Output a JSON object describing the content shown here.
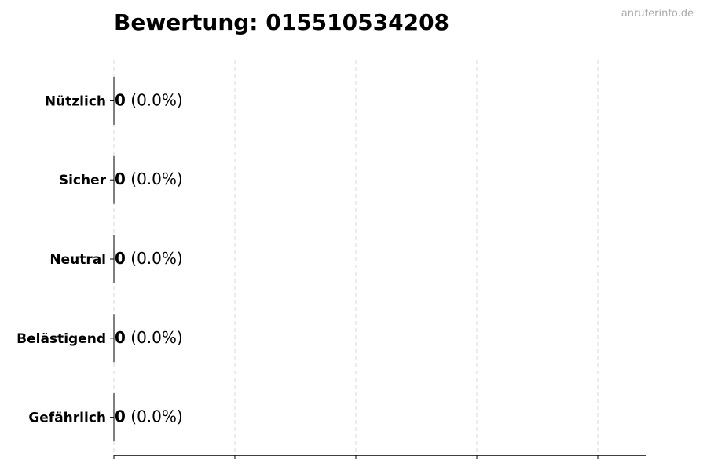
{
  "chart_data": {
    "type": "bar",
    "orientation": "horizontal",
    "title": "Bewertung: 015510534208",
    "categories": [
      "Nützlich",
      "Sicher",
      "Neutral",
      "Belästigend",
      "Gefährlich"
    ],
    "values": [
      0,
      0,
      0,
      0,
      0
    ],
    "data_labels": [
      {
        "count": "0",
        "percent": "(0.0%)"
      },
      {
        "count": "0",
        "percent": "(0.0%)"
      },
      {
        "count": "0",
        "percent": "(0.0%)"
      },
      {
        "count": "0",
        "percent": "(0.0%)"
      },
      {
        "count": "0",
        "percent": "(0.0%)"
      }
    ],
    "xlabel": "",
    "ylabel": "",
    "x_tick_count": 5,
    "x_tick_labels_shown": false,
    "grid": "vertical dashed",
    "colors": {
      "grid": "#d9d9d9",
      "axis": "#000000",
      "bar_edge": "#000000"
    }
  },
  "watermark": "anruferinfo.de"
}
